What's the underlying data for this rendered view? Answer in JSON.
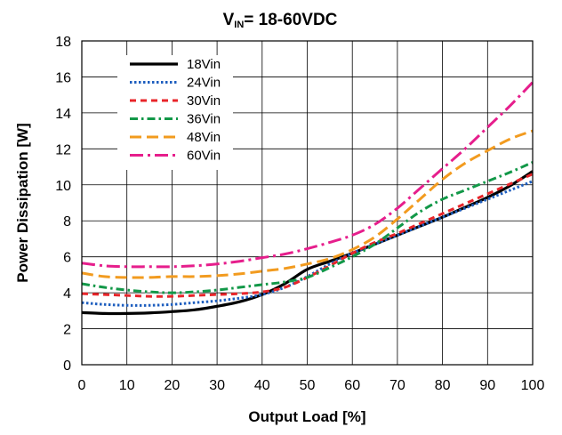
{
  "chart_data": {
    "type": "line",
    "title": {
      "prefix": "V",
      "subscript": "IN",
      "suffix": "= 18-60VDC"
    },
    "xlabel": "Output Load [%]",
    "ylabel": "Power Dissipation [W]",
    "xlim": [
      0,
      100
    ],
    "ylim": [
      0,
      18
    ],
    "xticks": [
      "0",
      "10",
      "20",
      "30",
      "40",
      "50",
      "60",
      "70",
      "80",
      "90",
      "100"
    ],
    "yticks": [
      "0",
      "2",
      "4",
      "6",
      "8",
      "10",
      "12",
      "14",
      "16",
      "18"
    ],
    "grid": true,
    "legend_position": "top-left",
    "x": [
      0,
      5,
      10,
      15,
      20,
      25,
      30,
      35,
      40,
      45,
      50,
      55,
      60,
      65,
      70,
      75,
      80,
      85,
      90,
      95,
      100
    ],
    "series": [
      {
        "name": "18Vin",
        "color": "#000000",
        "style": "solid",
        "values": [
          2.9,
          2.85,
          2.85,
          2.88,
          2.95,
          3.05,
          3.25,
          3.5,
          3.9,
          4.5,
          5.3,
          5.75,
          6.2,
          6.7,
          7.2,
          7.7,
          8.2,
          8.75,
          9.3,
          9.95,
          10.75
        ]
      },
      {
        "name": "24Vin",
        "color": "#1f5fbf",
        "style": "dotted",
        "values": [
          3.45,
          3.35,
          3.3,
          3.3,
          3.35,
          3.45,
          3.55,
          3.7,
          3.9,
          4.3,
          4.9,
          5.6,
          6.2,
          6.7,
          7.2,
          7.7,
          8.2,
          8.7,
          9.2,
          9.7,
          10.2
        ]
      },
      {
        "name": "30Vin",
        "color": "#e8252a",
        "style": "dashed",
        "values": [
          3.95,
          3.9,
          3.85,
          3.8,
          3.8,
          3.85,
          3.9,
          3.95,
          4.05,
          4.3,
          4.85,
          5.5,
          6.2,
          6.8,
          7.3,
          7.85,
          8.4,
          8.95,
          9.5,
          10.05,
          10.6
        ]
      },
      {
        "name": "36Vin",
        "color": "#129848",
        "style": "dashdot",
        "values": [
          4.5,
          4.3,
          4.15,
          4.05,
          4.0,
          4.05,
          4.15,
          4.3,
          4.45,
          4.6,
          4.85,
          5.4,
          6.0,
          6.7,
          7.6,
          8.5,
          9.2,
          9.7,
          10.2,
          10.7,
          11.25
        ]
      },
      {
        "name": "48Vin",
        "color": "#f29b1f",
        "style": "longdash",
        "values": [
          5.1,
          4.9,
          4.85,
          4.85,
          4.9,
          4.9,
          4.95,
          5.05,
          5.2,
          5.35,
          5.6,
          5.9,
          6.4,
          7.1,
          8.1,
          9.2,
          10.3,
          11.2,
          11.9,
          12.55,
          13.0
        ]
      },
      {
        "name": "60Vin",
        "color": "#e61e8c",
        "style": "longdashdot",
        "values": [
          5.65,
          5.5,
          5.45,
          5.45,
          5.45,
          5.5,
          5.6,
          5.75,
          5.95,
          6.15,
          6.45,
          6.8,
          7.2,
          7.8,
          8.7,
          9.8,
          10.9,
          12.0,
          13.2,
          14.4,
          15.7
        ]
      }
    ]
  }
}
